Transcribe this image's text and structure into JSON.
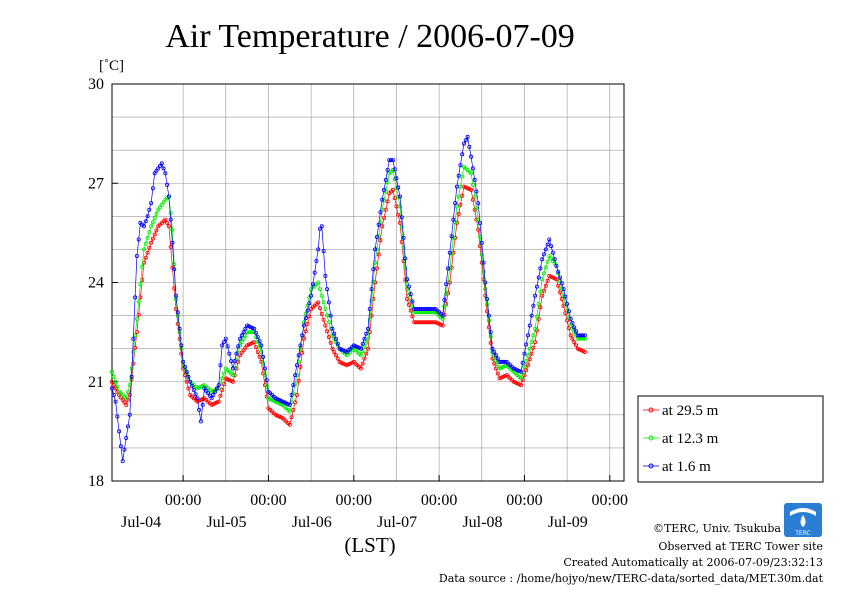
{
  "chart_data": {
    "type": "line",
    "title": "Air Temperature / 2006-07-09",
    "ylabel_unit": "[˚C]",
    "xlabel": "(LST)",
    "ylim": [
      18,
      30
    ],
    "yticks": [
      "18",
      "21",
      "24",
      "27",
      "30"
    ],
    "xlim_hours": [
      -20,
      124
    ],
    "xticks": [
      {
        "time": "00:00",
        "date": "Jul-04"
      },
      {
        "time": "00:00",
        "date": "Jul-05"
      },
      {
        "time": "00:00",
        "date": "Jul-06"
      },
      {
        "time": "00:00",
        "date": "Jul-07"
      },
      {
        "time": "00:00",
        "date": "Jul-08"
      },
      {
        "time": "00:00",
        "date": "Jul-09"
      }
    ],
    "grid": true,
    "legend_position": "right",
    "colors": {
      "at_29_5": "#ff0000",
      "at_12_3": "#00ee00",
      "at_1_6": "#0000ff"
    },
    "series": [
      {
        "name": "at 29.5 m",
        "color": "#ff0000",
        "keypoints": [
          [
            -20,
            21.0
          ],
          [
            -18,
            20.6
          ],
          [
            -16,
            20.3
          ],
          [
            -15,
            20.6
          ],
          [
            -13,
            22.5
          ],
          [
            -11,
            24.6
          ],
          [
            -9,
            25.2
          ],
          [
            -7,
            25.7
          ],
          [
            -5,
            25.9
          ],
          [
            -4,
            25.7
          ],
          [
            -2,
            23.2
          ],
          [
            0,
            21.4
          ],
          [
            2,
            20.6
          ],
          [
            4,
            20.4
          ],
          [
            6,
            20.5
          ],
          [
            8,
            20.3
          ],
          [
            10,
            20.4
          ],
          [
            12,
            21.1
          ],
          [
            14,
            21.0
          ],
          [
            16,
            21.8
          ],
          [
            18,
            22.1
          ],
          [
            20,
            22.2
          ],
          [
            22,
            21.6
          ],
          [
            24,
            20.2
          ],
          [
            26,
            20.0
          ],
          [
            28,
            19.9
          ],
          [
            30,
            19.7
          ],
          [
            32,
            20.6
          ],
          [
            34,
            22.3
          ],
          [
            36,
            23.2
          ],
          [
            38,
            23.4
          ],
          [
            40,
            22.7
          ],
          [
            42,
            22.0
          ],
          [
            44,
            21.6
          ],
          [
            46,
            21.5
          ],
          [
            48,
            21.6
          ],
          [
            50,
            21.4
          ],
          [
            52,
            22.0
          ],
          [
            54,
            24.0
          ],
          [
            56,
            25.7
          ],
          [
            58,
            26.7
          ],
          [
            59,
            26.8
          ],
          [
            61,
            25.8
          ],
          [
            63,
            23.5
          ],
          [
            65,
            22.8
          ],
          [
            67,
            22.8
          ],
          [
            69,
            22.8
          ],
          [
            71,
            22.8
          ],
          [
            73,
            22.7
          ],
          [
            75,
            24.0
          ],
          [
            77,
            25.8
          ],
          [
            79,
            26.9
          ],
          [
            81,
            26.8
          ],
          [
            83,
            25.6
          ],
          [
            85,
            23.6
          ],
          [
            87,
            21.7
          ],
          [
            89,
            21.1
          ],
          [
            91,
            21.2
          ],
          [
            93,
            21.0
          ],
          [
            95,
            20.9
          ],
          [
            97,
            21.5
          ],
          [
            99,
            22.2
          ],
          [
            101,
            23.6
          ],
          [
            103,
            24.2
          ],
          [
            105,
            24.1
          ],
          [
            107,
            23.3
          ],
          [
            109,
            22.4
          ],
          [
            111,
            22.0
          ],
          [
            113,
            21.9
          ]
        ]
      },
      {
        "name": "at 12.3 m",
        "color": "#00ee00",
        "keypoints": [
          [
            -20,
            21.3
          ],
          [
            -18,
            20.7
          ],
          [
            -16,
            20.5
          ],
          [
            -15,
            20.9
          ],
          [
            -13,
            22.9
          ],
          [
            -11,
            25.0
          ],
          [
            -9,
            25.7
          ],
          [
            -7,
            26.2
          ],
          [
            -5,
            26.5
          ],
          [
            -4,
            26.6
          ],
          [
            -3,
            25.6
          ],
          [
            -2,
            23.5
          ],
          [
            0,
            21.5
          ],
          [
            2,
            21.0
          ],
          [
            4,
            20.8
          ],
          [
            6,
            20.9
          ],
          [
            8,
            20.7
          ],
          [
            10,
            20.8
          ],
          [
            12,
            21.4
          ],
          [
            14,
            21.2
          ],
          [
            16,
            22.1
          ],
          [
            18,
            22.5
          ],
          [
            20,
            22.5
          ],
          [
            22,
            21.9
          ],
          [
            24,
            20.5
          ],
          [
            26,
            20.4
          ],
          [
            28,
            20.3
          ],
          [
            30,
            20.1
          ],
          [
            32,
            21.2
          ],
          [
            34,
            22.8
          ],
          [
            36,
            23.8
          ],
          [
            38,
            24.0
          ],
          [
            40,
            23.2
          ],
          [
            42,
            22.4
          ],
          [
            44,
            22.0
          ],
          [
            46,
            21.8
          ],
          [
            48,
            22.0
          ],
          [
            50,
            21.8
          ],
          [
            52,
            22.3
          ],
          [
            54,
            24.6
          ],
          [
            56,
            26.2
          ],
          [
            58,
            27.3
          ],
          [
            59,
            27.4
          ],
          [
            61,
            26.3
          ],
          [
            63,
            23.8
          ],
          [
            65,
            23.1
          ],
          [
            67,
            23.1
          ],
          [
            69,
            23.1
          ],
          [
            71,
            23.1
          ],
          [
            73,
            22.9
          ],
          [
            75,
            24.4
          ],
          [
            77,
            26.3
          ],
          [
            79,
            27.5
          ],
          [
            81,
            27.3
          ],
          [
            83,
            25.9
          ],
          [
            85,
            23.8
          ],
          [
            87,
            21.9
          ],
          [
            89,
            21.4
          ],
          [
            91,
            21.5
          ],
          [
            93,
            21.3
          ],
          [
            95,
            21.1
          ],
          [
            97,
            21.8
          ],
          [
            99,
            22.6
          ],
          [
            101,
            24.1
          ],
          [
            103,
            24.8
          ],
          [
            105,
            24.5
          ],
          [
            107,
            23.6
          ],
          [
            109,
            22.7
          ],
          [
            111,
            22.3
          ],
          [
            113,
            22.3
          ]
        ]
      },
      {
        "name": "at 1.6 m",
        "color": "#0000ff",
        "keypoints": [
          [
            -20,
            20.8
          ],
          [
            -19,
            20.4
          ],
          [
            -18,
            19.5
          ],
          [
            -17,
            18.6
          ],
          [
            -16,
            19.3
          ],
          [
            -15,
            20.0
          ],
          [
            -14,
            22.3
          ],
          [
            -13,
            24.8
          ],
          [
            -12,
            25.8
          ],
          [
            -11,
            25.7
          ],
          [
            -10,
            26.0
          ],
          [
            -9,
            26.4
          ],
          [
            -8,
            27.3
          ],
          [
            -6,
            27.6
          ],
          [
            -5,
            27.3
          ],
          [
            -4,
            26.6
          ],
          [
            -3,
            25.2
          ],
          [
            -2,
            23.6
          ],
          [
            0,
            21.6
          ],
          [
            2,
            21.0
          ],
          [
            4,
            20.5
          ],
          [
            5,
            19.8
          ],
          [
            6,
            20.8
          ],
          [
            8,
            20.5
          ],
          [
            10,
            20.9
          ],
          [
            11,
            22.1
          ],
          [
            12,
            22.3
          ],
          [
            14,
            21.4
          ],
          [
            16,
            22.3
          ],
          [
            18,
            22.7
          ],
          [
            20,
            22.6
          ],
          [
            22,
            22.1
          ],
          [
            24,
            20.7
          ],
          [
            26,
            20.5
          ],
          [
            28,
            20.4
          ],
          [
            30,
            20.3
          ],
          [
            32,
            21.5
          ],
          [
            34,
            22.7
          ],
          [
            36,
            23.6
          ],
          [
            38,
            25.0
          ],
          [
            38.8,
            26.0
          ],
          [
            40,
            24.2
          ],
          [
            42,
            22.6
          ],
          [
            44,
            22.0
          ],
          [
            46,
            21.9
          ],
          [
            48,
            22.1
          ],
          [
            50,
            22.0
          ],
          [
            52,
            22.6
          ],
          [
            54,
            25.0
          ],
          [
            56,
            26.5
          ],
          [
            58,
            27.7
          ],
          [
            59,
            27.7
          ],
          [
            61,
            26.6
          ],
          [
            63,
            24.1
          ],
          [
            65,
            23.2
          ],
          [
            67,
            23.2
          ],
          [
            69,
            23.2
          ],
          [
            71,
            23.2
          ],
          [
            73,
            23.0
          ],
          [
            75,
            24.9
          ],
          [
            77,
            26.9
          ],
          [
            79,
            28.2
          ],
          [
            80,
            28.4
          ],
          [
            81,
            27.8
          ],
          [
            83,
            26.4
          ],
          [
            85,
            24.0
          ],
          [
            87,
            22.0
          ],
          [
            89,
            21.6
          ],
          [
            91,
            21.6
          ],
          [
            93,
            21.4
          ],
          [
            95,
            21.3
          ],
          [
            97,
            22.4
          ],
          [
            99,
            23.6
          ],
          [
            101,
            24.7
          ],
          [
            103,
            25.3
          ],
          [
            105,
            24.5
          ],
          [
            107,
            23.8
          ],
          [
            109,
            22.9
          ],
          [
            111,
            22.4
          ],
          [
            113,
            22.4
          ]
        ]
      }
    ],
    "footer": {
      "copyright": "©TERC, Univ. Tsukuba",
      "observed": "Observed at TERC Tower site",
      "created": "Created Automatically at 2006-07-09/23:32:13",
      "source": "Data source : /home/hojyo/new/TERC-data/sorted_data/MET.30m.dat",
      "logo_text": "TERC"
    }
  }
}
